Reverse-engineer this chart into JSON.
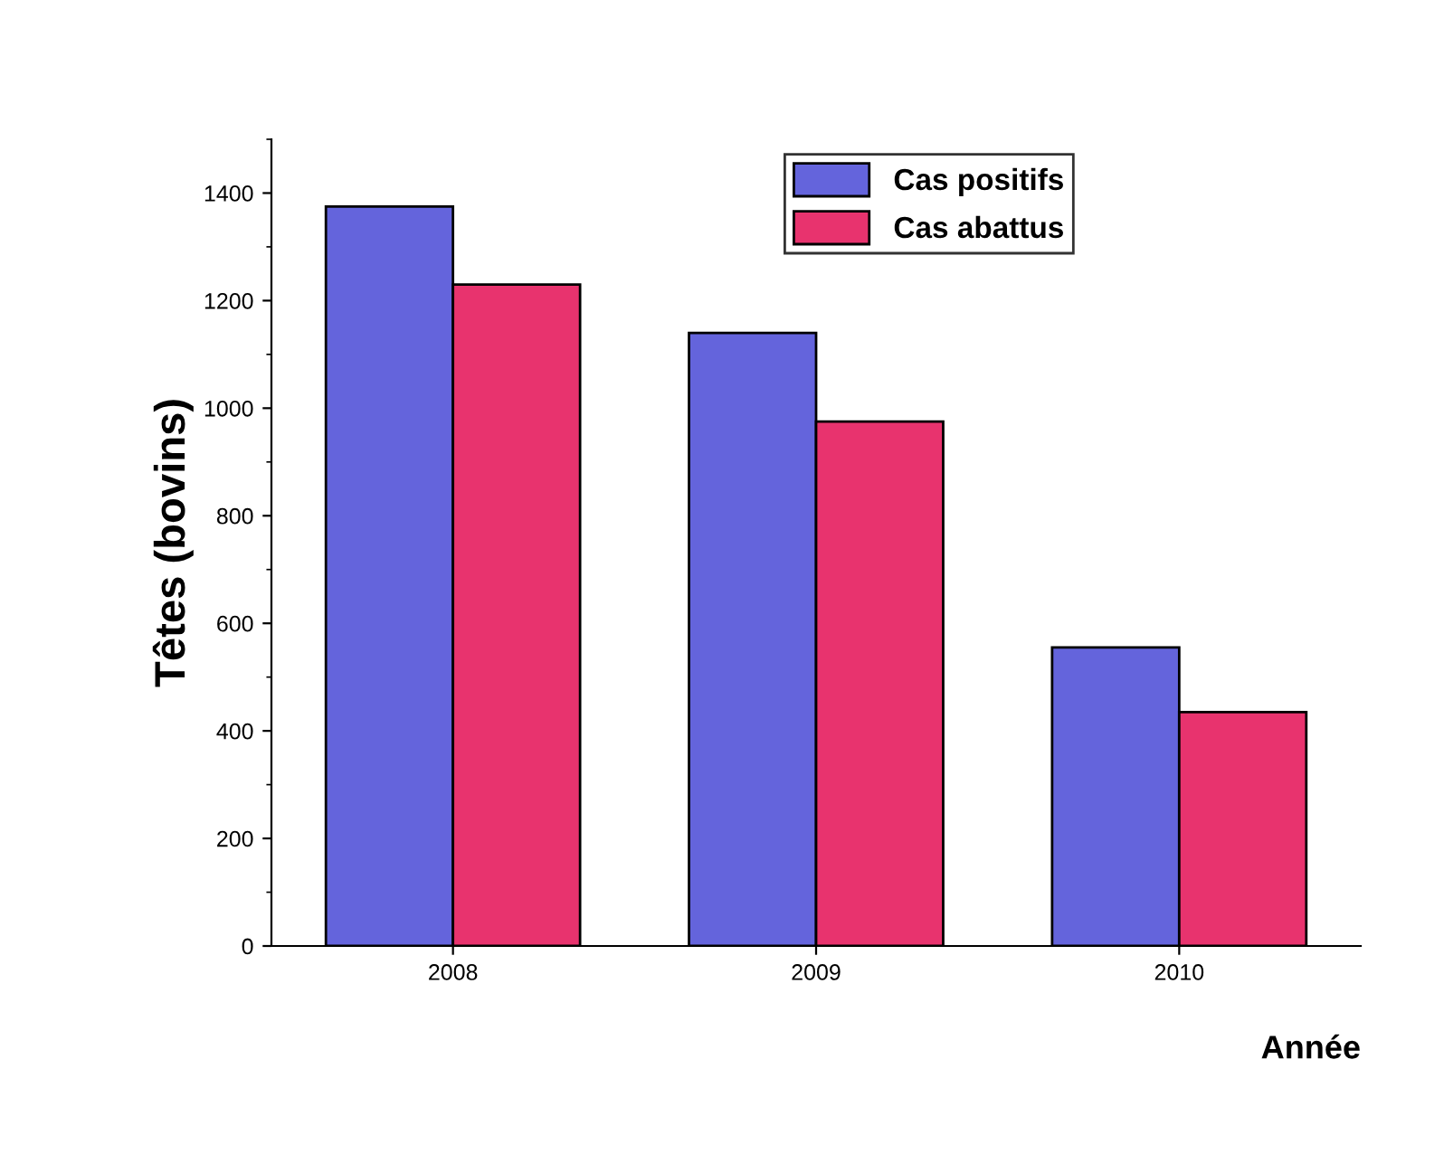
{
  "chart_data": {
    "type": "bar",
    "xlabel": "Année",
    "ylabel": "Têtes (bovins)",
    "categories": [
      "2008",
      "2009",
      "2010"
    ],
    "series": [
      {
        "name": "Cas positifs",
        "color": "#6464dc",
        "values": [
          1375,
          1140,
          555
        ]
      },
      {
        "name": "Cas abattus",
        "color": "#e8336e",
        "values": [
          1230,
          975,
          435
        ]
      }
    ],
    "ylim": [
      0,
      1500
    ],
    "yticks": [
      0,
      200,
      400,
      600,
      800,
      1000,
      1200,
      1400
    ],
    "grid": false,
    "legend": "top right"
  }
}
